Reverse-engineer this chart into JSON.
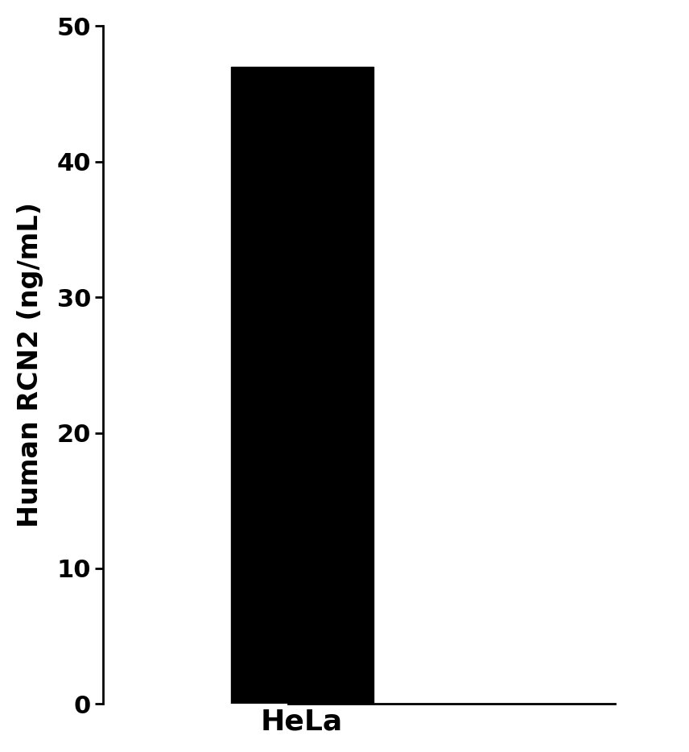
{
  "categories": [
    "HeLa"
  ],
  "values": [
    47.0
  ],
  "bar_color": "#000000",
  "ylabel": "Human RCN2 (ng/mL)",
  "ylim": [
    0,
    50
  ],
  "yticks": [
    0,
    10,
    20,
    30,
    40,
    50
  ],
  "bar_width": 0.5,
  "xlim": [
    -0.7,
    1.3
  ],
  "background_color": "#ffffff",
  "ylabel_fontsize": 24,
  "tick_fontsize": 22,
  "xtick_fontsize": 26,
  "tick_fontweight": "bold",
  "ylabel_fontweight": "bold"
}
